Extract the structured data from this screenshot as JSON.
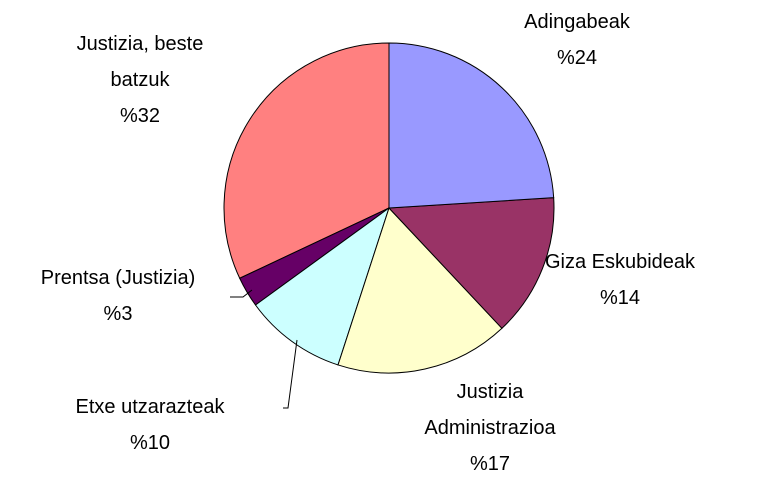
{
  "chart_data": {
    "type": "pie",
    "categories": [
      "Adingabeak",
      "Giza Eskubideak",
      "Justizia Administrazioa",
      "Etxe utzarazteak",
      "Prentsa (Justizia)",
      "Justizia, beste batzuk"
    ],
    "values": [
      24,
      14,
      17,
      10,
      3,
      32
    ],
    "value_labels": [
      "%24",
      "%14",
      "%17",
      "%10",
      "%3",
      "%32"
    ],
    "colors": [
      "#9999ff",
      "#993366",
      "#ffffcc",
      "#ccffff",
      "#660066",
      "#ff8080"
    ]
  }
}
